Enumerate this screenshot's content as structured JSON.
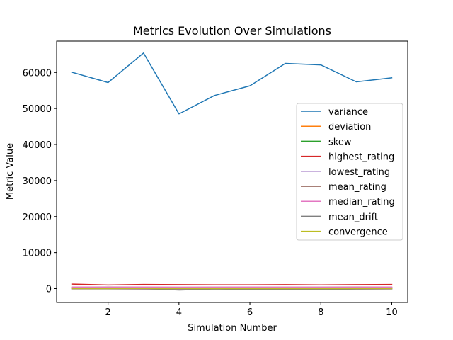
{
  "chart_data": {
    "type": "line",
    "title": "Metrics Evolution Over Simulations",
    "xlabel": "Simulation Number",
    "ylabel": "Metric Value",
    "x": [
      1,
      2,
      3,
      4,
      5,
      6,
      7,
      8,
      9,
      10
    ],
    "xlim": [
      0.55,
      10.45
    ],
    "ylim": [
      -3830,
      68700
    ],
    "xticks": [
      2,
      4,
      6,
      8,
      10
    ],
    "yticks": [
      0,
      10000,
      20000,
      30000,
      40000,
      50000,
      60000
    ],
    "grid": false,
    "legend_position": "center-right",
    "series": [
      {
        "name": "variance",
        "color": "#1f77b4",
        "values": [
          60000,
          57200,
          65400,
          48500,
          53600,
          56300,
          62500,
          62100,
          57400,
          58500
        ]
      },
      {
        "name": "deviation",
        "color": "#ff7f0e",
        "values": [
          245,
          239,
          256,
          220,
          232,
          237,
          250,
          249,
          240,
          242
        ]
      },
      {
        "name": "skew",
        "color": "#2ca02c",
        "values": [
          0.1,
          -0.2,
          0.3,
          -0.1,
          0.2,
          0.0,
          -0.3,
          0.1,
          0.2,
          -0.1
        ]
      },
      {
        "name": "highest_rating",
        "color": "#d62728",
        "values": [
          1250,
          1000,
          1150,
          1120,
          1050,
          1060,
          1100,
          1030,
          1100,
          1150
        ]
      },
      {
        "name": "lowest_rating",
        "color": "#9467bd",
        "values": [
          -80,
          -60,
          -120,
          -180,
          -100,
          -150,
          -90,
          -140,
          -110,
          -100
        ]
      },
      {
        "name": "mean_rating",
        "color": "#8c564b",
        "values": [
          400,
          410,
          390,
          380,
          400,
          405,
          395,
          400,
          410,
          400
        ]
      },
      {
        "name": "median_rating",
        "color": "#e377c2",
        "values": [
          420,
          400,
          410,
          390,
          395,
          410,
          400,
          405,
          400,
          410
        ]
      },
      {
        "name": "mean_drift",
        "color": "#7f7f7f",
        "values": [
          0,
          -50,
          20,
          -400,
          -100,
          -250,
          -150,
          -300,
          -100,
          -50
        ]
      },
      {
        "name": "convergence",
        "color": "#bcbd22",
        "values": [
          0,
          0,
          0,
          0,
          0,
          0,
          0,
          0,
          0,
          0
        ]
      }
    ]
  }
}
